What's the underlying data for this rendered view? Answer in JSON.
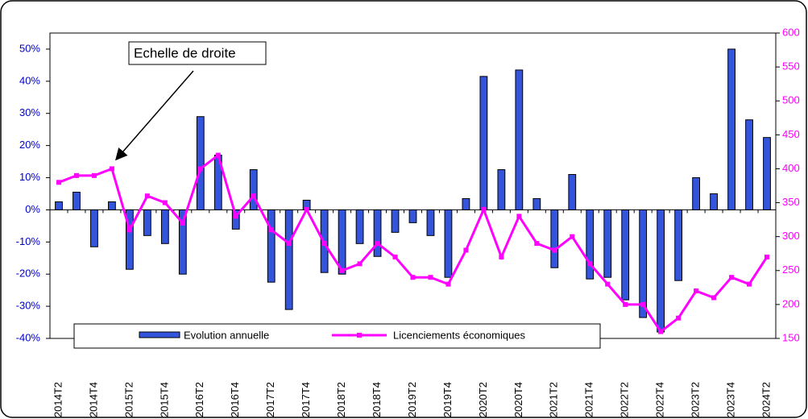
{
  "chart_data": {
    "type": "bar_line",
    "categories": [
      "2014T2",
      null,
      "2014T4",
      null,
      "2015T2",
      null,
      "2015T4",
      null,
      "2016T2",
      null,
      "2016T4",
      null,
      "2017T2",
      null,
      "2017T4",
      null,
      "2018T2",
      null,
      "2018T4",
      null,
      "2019T2",
      null,
      "2019T4",
      null,
      "2020T2",
      null,
      "2020T4",
      null,
      "2021T2",
      null,
      "2021T4",
      null,
      "2022T2",
      null,
      "2022T4",
      null,
      "2023T2",
      null,
      "2023T4",
      null,
      "2024T2"
    ],
    "series": [
      {
        "name": "Evolution annuelle",
        "color": "#3355dd",
        "kind": "bar",
        "axis": "y",
        "values": [
          2.5,
          5.5,
          -11.5,
          2.5,
          -18.5,
          -8,
          -10.5,
          -20,
          29,
          17,
          -6,
          12.5,
          -22.5,
          -31,
          3,
          -19.5,
          -20,
          -10.5,
          -14.5,
          -7,
          -4,
          -8,
          -21,
          3.5,
          41.5,
          12.5,
          43.5,
          3.5,
          -18,
          11,
          -21.5,
          -21,
          -28,
          -33.5,
          -38,
          -22,
          10,
          5,
          50,
          28,
          22.5
        ]
      },
      {
        "name": "Licenciements économiques",
        "color": "#ff00ff",
        "kind": "line",
        "axis": "y2",
        "values": [
          380,
          390,
          390,
          400,
          310,
          360,
          350,
          320,
          400,
          420,
          330,
          360,
          310,
          290,
          340,
          290,
          250,
          260,
          290,
          270,
          240,
          240,
          230,
          280,
          340,
          270,
          330,
          290,
          280,
          300,
          260,
          230,
          200,
          200,
          160,
          180,
          220,
          210,
          240,
          230,
          270
        ]
      }
    ],
    "ylim": [
      -40,
      55
    ],
    "yticks": [
      {
        "value": -40,
        "label": "-40%"
      },
      {
        "value": -30,
        "label": "-30%"
      },
      {
        "value": -20,
        "label": "-20%"
      },
      {
        "value": -10,
        "label": "-10%"
      },
      {
        "value": 0,
        "label": "0%"
      },
      {
        "value": 10,
        "label": "10%"
      },
      {
        "value": 20,
        "label": "20%"
      },
      {
        "value": 30,
        "label": "30%"
      },
      {
        "value": 40,
        "label": "40%"
      },
      {
        "value": 50,
        "label": "50%"
      }
    ],
    "y2lim": [
      150,
      600
    ],
    "y2ticks": [
      150,
      200,
      250,
      300,
      350,
      400,
      450,
      500,
      550,
      600
    ],
    "y2_color": "#ff00ff",
    "y_color": "#0000cc",
    "annotation": "Echelle de droite",
    "legend": true,
    "grid": false
  }
}
